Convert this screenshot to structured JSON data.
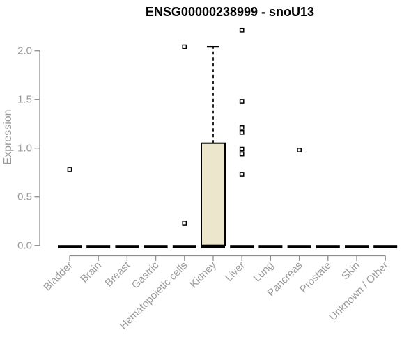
{
  "chart_data": {
    "type": "boxplot",
    "title": "ENSG00000238999 - snoU13",
    "ylabel": "Expression",
    "xlabel": "",
    "ylim": [
      0,
      2.25
    ],
    "yticks": [
      "0.0",
      "0.5",
      "1.0",
      "1.5",
      "2.0"
    ],
    "grid": false,
    "legend": null,
    "x_label_rotation": -45,
    "categories": [
      "Bladder",
      "Brain",
      "Breast",
      "Gastric",
      "Hematopoietic cells",
      "Kidney",
      "Liver",
      "Lung",
      "Pancreas",
      "Prostate",
      "Skin",
      "Unknown / Other"
    ],
    "boxes": [
      {
        "category": "Bladder",
        "q1": 0,
        "median": 0,
        "q3": 0,
        "whisker_low": 0,
        "whisker_high": 0,
        "outliers": [
          0.78
        ]
      },
      {
        "category": "Brain",
        "q1": 0,
        "median": 0,
        "q3": 0,
        "whisker_low": 0,
        "whisker_high": 0,
        "outliers": []
      },
      {
        "category": "Breast",
        "q1": 0,
        "median": 0,
        "q3": 0,
        "whisker_low": 0,
        "whisker_high": 0,
        "outliers": []
      },
      {
        "category": "Gastric",
        "q1": 0,
        "median": 0,
        "q3": 0,
        "whisker_low": 0,
        "whisker_high": 0,
        "outliers": []
      },
      {
        "category": "Hematopoietic cells",
        "q1": 0,
        "median": 0,
        "q3": 0,
        "whisker_low": 0,
        "whisker_high": 0,
        "outliers": [
          2.04,
          0.23
        ]
      },
      {
        "category": "Kidney",
        "q1": 0,
        "median": 0,
        "q3": 1.05,
        "whisker_low": 0,
        "whisker_high": 2.04,
        "outliers": []
      },
      {
        "category": "Liver",
        "q1": 0,
        "median": 0,
        "q3": 0,
        "whisker_low": 0,
        "whisker_high": 0,
        "outliers": [
          2.21,
          1.48,
          1.21,
          1.16,
          0.99,
          0.94,
          0.73
        ]
      },
      {
        "category": "Lung",
        "q1": 0,
        "median": 0,
        "q3": 0,
        "whisker_low": 0,
        "whisker_high": 0,
        "outliers": []
      },
      {
        "category": "Pancreas",
        "q1": 0,
        "median": 0,
        "q3": 0,
        "whisker_low": 0,
        "whisker_high": 0,
        "outliers": [
          0.98
        ]
      },
      {
        "category": "Prostate",
        "q1": 0,
        "median": 0,
        "q3": 0,
        "whisker_low": 0,
        "whisker_high": 0,
        "outliers": []
      },
      {
        "category": "Skin",
        "q1": 0,
        "median": 0,
        "q3": 0,
        "whisker_low": 0,
        "whisker_high": 0,
        "outliers": []
      },
      {
        "category": "Unknown / Other",
        "q1": 0,
        "median": 0,
        "q3": 0,
        "whisker_low": 0,
        "whisker_high": 0,
        "outliers": []
      }
    ],
    "colors": {
      "box_fill": "#ECE6CD",
      "box_stroke": "#000000",
      "median": "#000000",
      "whisker": "#000000",
      "outlier_stroke": "#000000",
      "outlier_fill": "#ffffff",
      "axis_line": "#8e8e8e",
      "axis_text": "#9a9a9a",
      "title": "#000000",
      "background": "#ffffff"
    }
  }
}
